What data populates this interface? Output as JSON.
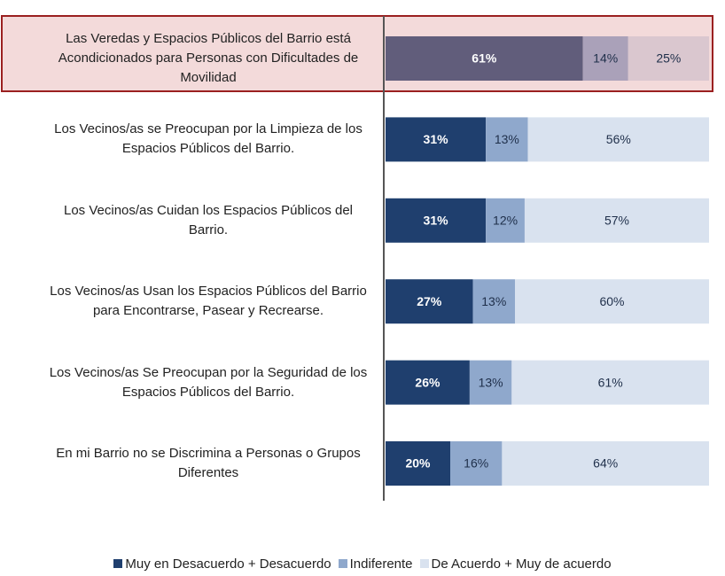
{
  "chart_data": {
    "type": "stacked_bar_horizontal",
    "categories": [
      "Las Veredas y Espacios Públicos del Barrio está Acondicionados para Personas con Dificultades de Movilidad",
      "Los Vecinos/as se Preocupan por la Limpieza de los Espacios Públicos del Barrio.",
      "Los Vecinos/as Cuidan los Espacios Públicos del Barrio.",
      "Los Vecinos/as Usan los Espacios Públicos del Barrio para Encontrarse, Pasear y Recrearse.",
      "Los Vecinos/as Se Preocupan por la Seguridad de los Espacios Públicos del Barrio.",
      "En mi Barrio no se Discrimina a Personas o Grupos Diferentes"
    ],
    "series": [
      {
        "name": "Muy en Desacuerdo + Desacuerdo",
        "color": "#1f3f6e",
        "values": [
          61,
          31,
          31,
          27,
          26,
          20
        ],
        "value_labels": [
          "61%",
          "31%",
          "31%",
          "27%",
          "26%",
          "20%"
        ]
      },
      {
        "name": "Indiferente",
        "color": "#8fa8cc",
        "values": [
          14,
          13,
          12,
          13,
          13,
          16
        ],
        "value_labels": [
          "14%",
          "13%",
          "12%",
          "13%",
          "13%",
          "16%"
        ]
      },
      {
        "name": "De Acuerdo + Muy de acuerdo",
        "color": "#d9e2ef",
        "values": [
          25,
          56,
          57,
          60,
          61,
          64
        ],
        "value_labels": [
          "25%",
          "56%",
          "57%",
          "60%",
          "61%",
          "64%"
        ]
      }
    ],
    "xlim": [
      0,
      100
    ],
    "legend": "bottom"
  }
}
